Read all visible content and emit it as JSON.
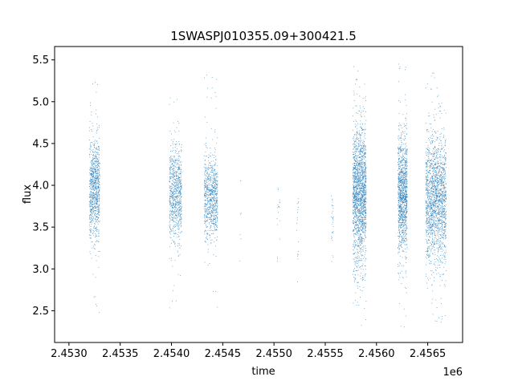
{
  "chart_data": {
    "type": "scatter",
    "title": "1SWASPJ010355.09+300421.5",
    "xlabel": "time",
    "ylabel": "flux",
    "x_offset_label": "1e6",
    "xlim": [
      2.45286,
      2.45684
    ],
    "ylim": [
      2.12,
      5.66
    ],
    "x_ticks": [
      2.453,
      2.4535,
      2.454,
      2.4545,
      2.455,
      2.4555,
      2.456,
      2.4565
    ],
    "x_tick_labels": [
      "2.4530",
      "2.4535",
      "2.4540",
      "2.4545",
      "2.4550",
      "2.4555",
      "2.4560",
      "2.4565"
    ],
    "y_ticks": [
      2.5,
      3.0,
      3.5,
      4.0,
      4.5,
      5.0,
      5.5
    ],
    "y_tick_labels": [
      "2.5",
      "3.0",
      "3.5",
      "4.0",
      "4.5",
      "5.0",
      "5.5"
    ],
    "grid": false,
    "marker_color": "#1f77b4",
    "series": [
      {
        "clusters": [
          {
            "x_range": [
              2.4532,
              2.4533
            ],
            "center": 3.95,
            "spread": 0.3,
            "min": 2.3,
            "max": 5.4,
            "points": 900
          },
          {
            "x_range": [
              2.45398,
              2.4541
            ],
            "center": 3.9,
            "spread": 0.3,
            "min": 2.35,
            "max": 5.25,
            "points": 800
          },
          {
            "x_range": [
              2.45432,
              2.45445
            ],
            "center": 3.85,
            "spread": 0.25,
            "min": 2.5,
            "max": 5.38,
            "points": 800
          },
          {
            "x_range": [
              2.45466,
              2.45468
            ],
            "center": 3.7,
            "spread": 0.4,
            "min": 2.95,
            "max": 4.72,
            "points": 6
          },
          {
            "x_range": [
              2.45503,
              2.45506
            ],
            "center": 3.55,
            "spread": 0.3,
            "min": 3.0,
            "max": 4.02,
            "points": 18
          },
          {
            "x_range": [
              2.45522,
              2.45524
            ],
            "center": 3.4,
            "spread": 0.3,
            "min": 2.8,
            "max": 3.85,
            "points": 18
          },
          {
            "x_range": [
              2.45556,
              2.45558
            ],
            "center": 3.5,
            "spread": 0.3,
            "min": 2.55,
            "max": 4.05,
            "points": 30
          },
          {
            "x_range": [
              2.45577,
              2.4559
            ],
            "center": 3.9,
            "spread": 0.4,
            "min": 2.28,
            "max": 5.48,
            "points": 1800
          },
          {
            "x_range": [
              2.45621,
              2.4563
            ],
            "center": 3.9,
            "spread": 0.35,
            "min": 2.3,
            "max": 5.48,
            "points": 1200
          },
          {
            "x_range": [
              2.45648,
              2.45668
            ],
            "center": 3.85,
            "spread": 0.38,
            "min": 2.35,
            "max": 5.45,
            "points": 1800
          }
        ]
      }
    ]
  }
}
